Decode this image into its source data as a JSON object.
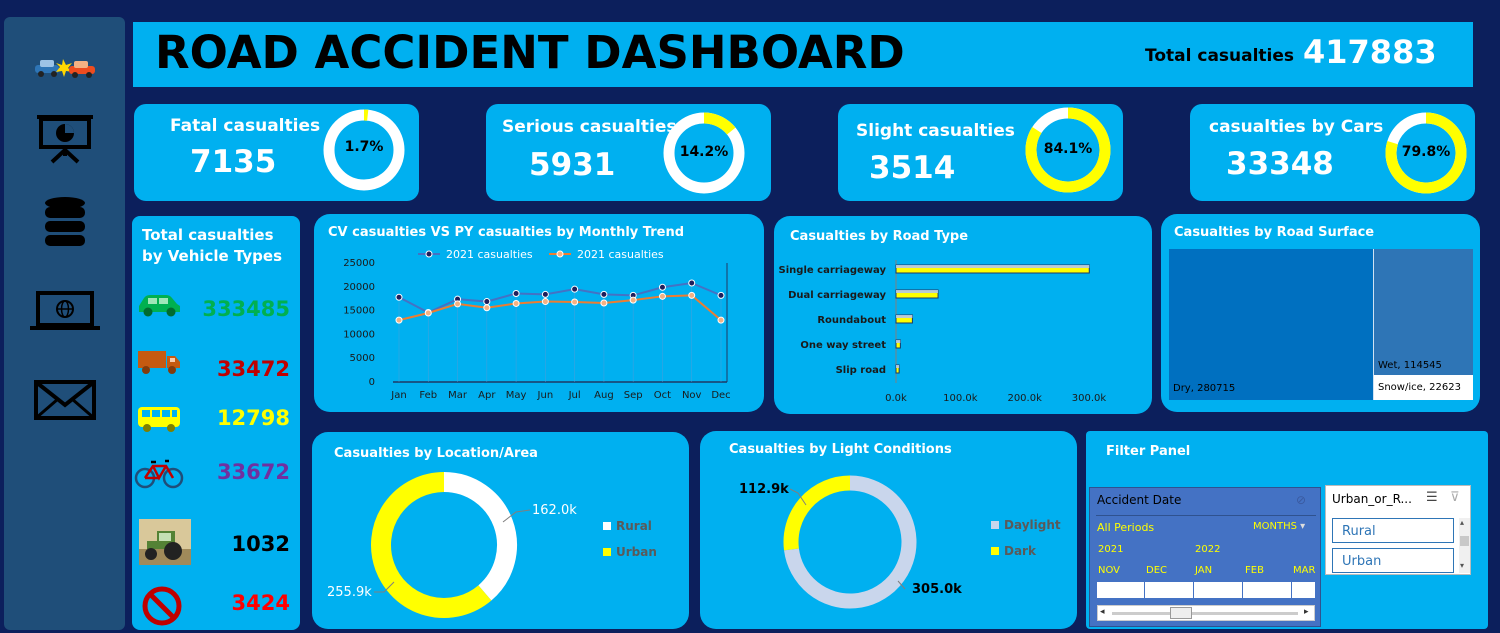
{
  "header": {
    "title": "ROAD ACCIDENT DASHBOARD",
    "total_label": "Total casualties",
    "total_value": "417883"
  },
  "sidebar": {
    "items": [
      {
        "icon": "car-crash-icon"
      },
      {
        "icon": "presentation-chart-icon"
      },
      {
        "icon": "database-icon"
      },
      {
        "icon": "laptop-globe-icon"
      },
      {
        "icon": "mail-icon"
      }
    ]
  },
  "kpis": [
    {
      "label": "Fatal casualties",
      "value": "7135",
      "pct_label": "1.7%",
      "pct": 1.7
    },
    {
      "label": "Serious casualties",
      "value": "5931",
      "pct_label": "14.2%",
      "pct": 14.2
    },
    {
      "label": "Slight casualties",
      "value": "3514",
      "pct_label": "84.1%",
      "pct": 84.1
    },
    {
      "label": "casualties by Cars",
      "value": "33348",
      "pct_label": "79.8%",
      "pct": 79.8
    }
  ],
  "vehicles": {
    "title_line1": "Total casualties",
    "title_line2": "by Vehicle Types",
    "items": [
      {
        "icon": "car-icon",
        "value": "333485",
        "color": "#00b050"
      },
      {
        "icon": "truck-icon",
        "value": "33472",
        "color": "#c00000"
      },
      {
        "icon": "bus-icon",
        "value": "12798",
        "color": "#ffff00"
      },
      {
        "icon": "bicycle-icon",
        "value": "33672",
        "color": "#7030a0"
      },
      {
        "icon": "tractor-icon",
        "value": "1032",
        "color": "#000000"
      },
      {
        "icon": "no-entry-icon",
        "value": "3424",
        "color": "#ff0000"
      }
    ]
  },
  "colors": {
    "panel": "#00b0f0",
    "background": "#0c1f5c",
    "yellow": "#ffff00",
    "cv_line": "#4472c4",
    "py_line": "#ed7d31"
  },
  "chart_data": [
    {
      "type": "line",
      "title": "CV casualties VS PY casualties by Monthly Trend",
      "categories": [
        "Jan",
        "Feb",
        "Mar",
        "Apr",
        "May",
        "Jun",
        "Jul",
        "Aug",
        "Sep",
        "Oct",
        "Nov",
        "Dec"
      ],
      "series": [
        {
          "name": "2021 casualties",
          "values": [
            17800,
            14600,
            17400,
            16900,
            18600,
            18400,
            19500,
            18400,
            18200,
            19900,
            20800,
            18200
          ]
        },
        {
          "name": "2021 casualties",
          "values": [
            13000,
            14500,
            16400,
            15600,
            16500,
            16900,
            16800,
            16600,
            17200,
            18000,
            18200,
            13000
          ]
        }
      ],
      "yticks": [
        "25000",
        "20000",
        "15000",
        "10000",
        "5000",
        "0"
      ],
      "ylim": [
        0,
        25000
      ],
      "grid": false,
      "legend": "top"
    },
    {
      "type": "bar",
      "title": "Casualties by Road Type",
      "categories": [
        "Single carriageway",
        "Dual carriageway",
        "Roundabout",
        "One way street",
        "Slip road"
      ],
      "values": [
        309698,
        67370,
        26280,
        7000,
        5000
      ],
      "xticks": [
        "0.0k",
        "100.0k",
        "200.0k",
        "300.0k"
      ],
      "xlim": [
        0,
        300000
      ],
      "orientation": "horizontal"
    },
    {
      "type": "treemap",
      "title": "Casualties by Road Surface",
      "items": [
        {
          "label": "Dry, 280715",
          "name": "Dry",
          "value": 280715,
          "color": "#0070c0"
        },
        {
          "label": "Wet, 114545",
          "name": "Wet",
          "value": 114545,
          "color": "#2e75b6"
        },
        {
          "label": "Snow/ice, 22623",
          "name": "Snow/ice",
          "value": 22623,
          "color": "#ffffff"
        }
      ]
    },
    {
      "type": "pie",
      "title": "Casualties by Location/Area",
      "donut": true,
      "slices": [
        {
          "name": "Rural",
          "value": 162.0,
          "label": "162.0k",
          "color": "#ffffff"
        },
        {
          "name": "Urban",
          "value": 255.9,
          "label": "255.9k",
          "color": "#ffff00"
        }
      ],
      "legend": "right"
    },
    {
      "type": "pie",
      "title": "Casualties by Light Conditions",
      "donut": true,
      "slices": [
        {
          "name": "Daylight",
          "value": 305.0,
          "label": "305.0k",
          "color": "#c9d6ec"
        },
        {
          "name": "Dark",
          "value": 112.9,
          "label": "112.9k",
          "color": "#ffff00"
        }
      ],
      "legend": "right"
    }
  ],
  "filter": {
    "title": "Filter Panel",
    "date_slicer": {
      "title": "Accident Date",
      "all_periods": "All Periods",
      "unit": "MONTHS",
      "years": [
        "2021",
        "2022"
      ],
      "months": [
        "NOV",
        "DEC",
        "JAN",
        "FEB",
        "MAR"
      ]
    },
    "area_slicer": {
      "title": "Urban_or_R...",
      "options": [
        "Rural",
        "Urban"
      ]
    }
  }
}
